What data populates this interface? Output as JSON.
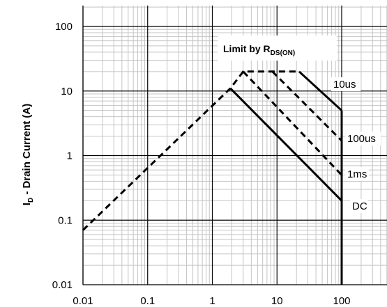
{
  "chart_data": {
    "type": "line",
    "title": "",
    "xlabel": "",
    "ylabel": {
      "main": "I",
      "sub": "D",
      "rest": " - Drain Current (A)"
    },
    "xscale": "log",
    "yscale": "log",
    "xlim": [
      0.01,
      100
    ],
    "ylim": [
      0.01,
      100
    ],
    "grid": true,
    "x_ticks": [
      "0.01",
      "0.1",
      "1",
      "10",
      "100"
    ],
    "y_ticks": [
      "0.01",
      "0.1",
      "1",
      "10",
      "100"
    ],
    "series": [
      {
        "name": "Limit by RDS(ON)",
        "style": "dashed",
        "x": [
          0.01,
          1.9,
          3.0,
          22
        ],
        "y": [
          0.07,
          11,
          20,
          20
        ]
      },
      {
        "name": "10us",
        "style": "solid",
        "x": [
          22,
          100
        ],
        "y": [
          20,
          5
        ]
      },
      {
        "name": "100us",
        "style": "dashed",
        "x": [
          8.5,
          100
        ],
        "y": [
          20,
          1.7
        ]
      },
      {
        "name": "1ms",
        "style": "dashed",
        "x": [
          3.0,
          100
        ],
        "y": [
          20,
          0.5
        ]
      },
      {
        "name": "DC",
        "style": "solid",
        "x": [
          1.9,
          100
        ],
        "y": [
          11,
          0.2
        ]
      },
      {
        "name": "",
        "style": "solid",
        "x": [
          100,
          100
        ],
        "y": [
          5,
          0.01
        ]
      }
    ],
    "annotations": [
      {
        "text": "Limit by R",
        "sub": "DS(ON)",
        "boxed": true
      },
      {
        "text": "10us"
      },
      {
        "text": "100us"
      },
      {
        "text": "1ms"
      },
      {
        "text": "DC"
      }
    ]
  }
}
